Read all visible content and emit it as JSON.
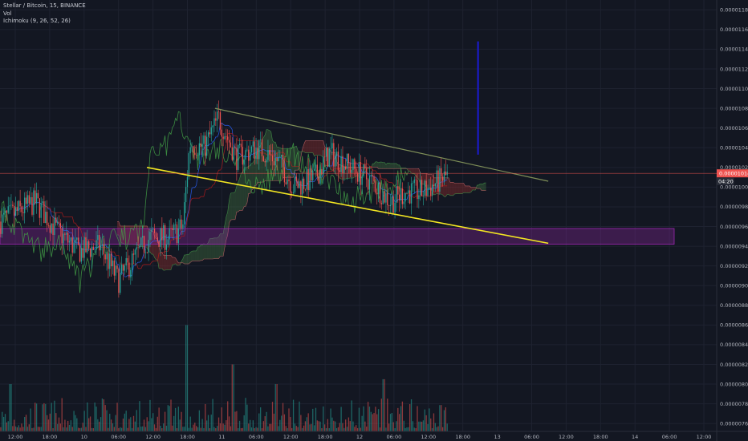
{
  "legend": {
    "symbol_line": "Stellar / Bitcoin, 15, BINANCE",
    "volume_label": "Vol",
    "ichimoku_label": "Ichimoku (9, 26, 52, 26)"
  },
  "price_tags": {
    "last_price": "0.00001014",
    "countdown": "04:20"
  },
  "colors": {
    "background": "#131722",
    "grid": "#1e2230",
    "up": "#26a69a",
    "down": "#ef5350",
    "trendline_upper": "#7f8f58",
    "trendline_lower": "#f3e622",
    "zone": "#9c27b0",
    "arrow": "#1a1ad6",
    "tenkan": "#2962ff",
    "kijun": "#b71c1c",
    "chikou": "#43a047",
    "kumo_bull": "#3f6b3f",
    "kumo_bear": "#8a2f2f",
    "price_tag": "#ef5350"
  },
  "chart_data": {
    "type": "candlestick",
    "y_axis_ticks": [
      "0.00001180",
      "0.00001160",
      "0.00001140",
      "0.00001120",
      "0.00001100",
      "0.00001080",
      "0.00001060",
      "0.00001040",
      "0.00001020",
      "0.00001000",
      "0.00000980",
      "0.00000960",
      "0.00000940",
      "0.00000920",
      "0.00000900",
      "0.00000880",
      "0.00000860",
      "0.00000840",
      "0.00000820",
      "0.00000800",
      "0.00000780",
      "0.00000760"
    ],
    "x_axis_ticks": [
      "12:00",
      "18:00",
      "10",
      "06:00",
      "12:00",
      "18:00",
      "11",
      "06:00",
      "12:00",
      "18:00",
      "12",
      "06:00",
      "12:00",
      "18:00",
      "13",
      "06:00",
      "12:00",
      "18:00",
      "14",
      "06:00",
      "12:00"
    ],
    "ylim": [
      7.52e-06,
      1.19e-05
    ],
    "price_range": [
      8.96e-06,
      1.094e-05
    ],
    "last_price": 1.014e-05,
    "upper_trendline": {
      "from": [
        0.3,
        1.08e-05
      ],
      "to": [
        0.765,
        1.006e-05
      ]
    },
    "lower_trendline": {
      "from": [
        0.205,
        1.02e-05
      ],
      "to": [
        0.765,
        9.43e-06
      ]
    },
    "support_zone": [
      9.42e-06,
      9.58e-06
    ],
    "target_arrow": {
      "x": 0.667,
      "from": 1.033e-05,
      "to": 1.148e-05
    },
    "ohlc_anchors": [
      [
        0.0,
        9.65e-06
      ],
      [
        0.05,
        9.85e-06
      ],
      [
        0.08,
        9.55e-06
      ],
      [
        0.11,
        9.35e-06
      ],
      [
        0.14,
        9.4e-06
      ],
      [
        0.165,
        9.05e-06
      ],
      [
        0.185,
        9.25e-06
      ],
      [
        0.21,
        9.5e-06
      ],
      [
        0.235,
        9.48e-06
      ],
      [
        0.255,
        9.6e-06
      ],
      [
        0.265,
        1.045e-05
      ],
      [
        0.285,
        1.04e-05
      ],
      [
        0.305,
        1.07e-05
      ],
      [
        0.33,
        1.03e-05
      ],
      [
        0.36,
        1.04e-05
      ],
      [
        0.39,
        1.025e-05
      ],
      [
        0.41,
        1e-05
      ],
      [
        0.44,
        1.01e-05
      ],
      [
        0.46,
        1.035e-05
      ],
      [
        0.49,
        1.02e-05
      ],
      [
        0.52,
        1.005e-05
      ],
      [
        0.545,
        9.85e-06
      ],
      [
        0.565,
        9.95e-06
      ],
      [
        0.59,
        9.95e-06
      ],
      [
        0.61,
        1.005e-05
      ],
      [
        0.625,
        1.012e-05
      ]
    ],
    "volume_spikes": [
      [
        0.015,
        8e-06
      ],
      [
        0.26,
        8.6e-06
      ],
      [
        0.325,
        8.2e-06
      ],
      [
        0.385,
        8e-06
      ],
      [
        0.535,
        8.05e-06
      ]
    ]
  }
}
